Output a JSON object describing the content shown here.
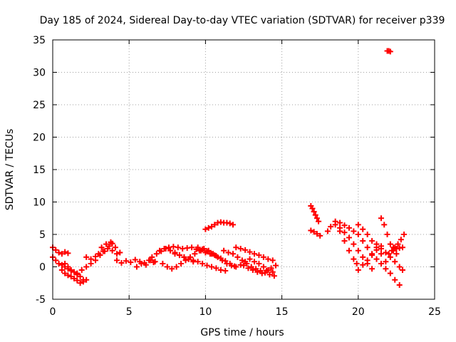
{
  "chart_data": {
    "type": "scatter",
    "title": "Day 185 of 2024, Sidereal Day-to-day VTEC variation (SDTVAR) for receiver p339",
    "xlabel": "GPS time / hours",
    "ylabel": "SDTVAR / TECUs",
    "xlim": [
      0,
      25
    ],
    "ylim": [
      -5,
      35
    ],
    "xticks": [
      0,
      5,
      10,
      15,
      20,
      25
    ],
    "yticks": [
      -5,
      0,
      5,
      10,
      15,
      20,
      25,
      30,
      35
    ],
    "grid": true,
    "marker": "+",
    "series_color": "#ff0000",
    "series": [
      {
        "name": "arc-00-01",
        "x": [
          0.0,
          0.2,
          0.4,
          0.6,
          0.8,
          1.0
        ],
        "y": [
          3.0,
          2.6,
          2.2,
          2.0,
          2.3,
          2.1
        ]
      },
      {
        "name": "arc-00-02",
        "x": [
          0.0,
          0.2,
          0.4,
          0.6,
          0.8,
          1.0,
          1.2
        ],
        "y": [
          1.5,
          1.0,
          0.5,
          0.3,
          0.0,
          -0.3,
          -0.6
        ]
      },
      {
        "name": "arc-00-03",
        "x": [
          0.6,
          0.8,
          1.0,
          1.2,
          1.4,
          1.6,
          1.8,
          2.0,
          2.2
        ],
        "y": [
          -0.5,
          -1.0,
          -1.3,
          -1.5,
          -1.8,
          -2.1,
          -2.5,
          -2.3,
          -2.0
        ]
      },
      {
        "name": "arc-01-04",
        "x": [
          1.6,
          1.9,
          2.2,
          2.5,
          2.8,
          3.1,
          3.4,
          3.7,
          3.9
        ],
        "y": [
          -1.0,
          -0.5,
          0.0,
          0.5,
          1.0,
          1.8,
          2.4,
          3.2,
          3.6
        ]
      },
      {
        "name": "arc-01-05",
        "x": [
          0.8,
          1.0,
          1.2,
          1.4,
          1.6,
          1.8,
          2.0
        ],
        "y": [
          0.5,
          0.0,
          -0.5,
          -0.8,
          -1.2,
          -1.5,
          -2.0
        ]
      },
      {
        "name": "arc-02-06",
        "x": [
          2.2,
          2.5,
          2.8,
          3.0,
          3.3,
          3.6,
          3.9,
          4.2
        ],
        "y": [
          1.5,
          1.2,
          1.6,
          2.0,
          2.4,
          2.8,
          2.5,
          2.0
        ]
      },
      {
        "name": "arc-04-07",
        "x": [
          4.2,
          4.5,
          4.8,
          5.1,
          5.4,
          5.7,
          6.0,
          6.3,
          6.6
        ],
        "y": [
          1.0,
          0.6,
          0.9,
          0.7,
          1.1,
          0.8,
          0.6,
          1.0,
          0.7
        ]
      },
      {
        "name": "arc-06-08",
        "x": [
          6.5,
          6.8,
          7.1,
          7.4,
          7.7,
          8.0,
          8.3,
          8.6,
          8.9,
          9.2
        ],
        "y": [
          1.5,
          2.0,
          2.4,
          2.8,
          2.5,
          2.2,
          1.8,
          1.5,
          1.2,
          0.8
        ]
      },
      {
        "name": "arc-07-09",
        "x": [
          7.0,
          7.3,
          7.6,
          7.9,
          8.2,
          8.5,
          8.8,
          9.1,
          9.4,
          9.7,
          10.0,
          10.3,
          10.6
        ],
        "y": [
          2.5,
          2.8,
          3.0,
          3.1,
          3.0,
          2.8,
          2.9,
          3.0,
          2.7,
          2.5,
          2.2,
          2.0,
          1.8
        ]
      },
      {
        "name": "arc-07-10",
        "x": [
          7.2,
          7.5,
          7.8,
          8.1,
          8.4,
          8.7,
          9.0,
          9.3,
          9.6,
          9.9,
          10.2
        ],
        "y": [
          0.5,
          0.0,
          -0.3,
          0.0,
          0.5,
          1.0,
          1.5,
          2.0,
          2.5,
          2.8,
          2.5
        ]
      },
      {
        "name": "arc-08-11",
        "x": [
          8.0,
          8.3,
          8.6,
          8.9,
          9.2,
          9.5,
          9.8,
          10.1,
          10.4,
          10.7,
          11.0,
          11.3
        ],
        "y": [
          2.0,
          1.8,
          1.5,
          1.2,
          1.0,
          0.8,
          0.5,
          0.2,
          0.0,
          -0.2,
          -0.5,
          -0.6
        ]
      },
      {
        "name": "arc-09-12",
        "x": [
          9.5,
          9.8,
          10.1,
          10.4,
          10.7,
          11.0,
          11.3,
          11.6,
          11.9
        ],
        "y": [
          3.0,
          2.7,
          2.4,
          2.0,
          1.7,
          1.3,
          0.9,
          0.5,
          0.1
        ]
      },
      {
        "name": "arc-10-13",
        "x": [
          10.0,
          10.2,
          10.4,
          10.6,
          10.8,
          11.0,
          11.2,
          11.4,
          11.6,
          11.8
        ],
        "y": [
          5.8,
          6.0,
          6.2,
          6.5,
          6.8,
          6.9,
          6.8,
          6.8,
          6.7,
          6.5
        ]
      },
      {
        "name": "arc-10-14",
        "x": [
          10.5,
          10.8,
          11.1,
          11.4,
          11.7,
          12.0,
          12.3,
          12.6,
          12.9,
          13.2,
          13.5,
          13.8,
          14.1,
          14.4
        ],
        "y": [
          2.0,
          1.5,
          1.0,
          0.5,
          0.2,
          0.0,
          0.3,
          0.8,
          1.2,
          0.8,
          0.5,
          0.0,
          -0.5,
          -0.8
        ]
      },
      {
        "name": "arc-11-15",
        "x": [
          11.2,
          11.5,
          11.8,
          12.1,
          12.4,
          12.7,
          13.0,
          13.3,
          13.6,
          13.9,
          14.2,
          14.5
        ],
        "y": [
          2.5,
          2.2,
          2.0,
          1.5,
          1.0,
          0.5,
          0.0,
          -0.3,
          -0.6,
          -0.9,
          -1.2,
          -1.4
        ]
      },
      {
        "name": "arc-12-16",
        "x": [
          12.0,
          12.3,
          12.6,
          12.9,
          13.2,
          13.5,
          13.8,
          14.1,
          14.4
        ],
        "y": [
          3.0,
          2.8,
          2.6,
          2.3,
          2.0,
          1.8,
          1.5,
          1.2,
          1.0
        ]
      },
      {
        "name": "arc-12-17",
        "x": [
          12.5,
          12.8,
          13.1,
          13.4,
          13.7,
          14.0,
          14.3,
          14.6
        ],
        "y": [
          0.2,
          -0.2,
          -0.5,
          -0.8,
          -1.0,
          -0.6,
          -0.2,
          0.2
        ]
      },
      {
        "name": "arc-17-18",
        "x": [
          16.9,
          17.0,
          17.1,
          17.2,
          17.3,
          17.4
        ],
        "y": [
          9.4,
          9.0,
          8.5,
          8.0,
          7.5,
          7.0
        ]
      },
      {
        "name": "arc-17-19",
        "x": [
          16.9,
          17.1,
          17.3,
          17.5
        ],
        "y": [
          5.6,
          5.4,
          5.1,
          4.8
        ]
      },
      {
        "name": "arc-18-20",
        "x": [
          18.0,
          18.2,
          18.5,
          18.8,
          19.1,
          19.4,
          19.7,
          20.0
        ],
        "y": [
          5.5,
          6.2,
          7.0,
          6.8,
          6.4,
          6.0,
          5.5,
          5.0
        ]
      },
      {
        "name": "arc-18-21",
        "x": [
          18.5,
          18.8,
          19.1,
          19.4,
          19.7,
          20.0,
          20.3,
          20.6,
          20.9
        ],
        "y": [
          6.5,
          6.0,
          5.3,
          4.5,
          3.5,
          2.5,
          1.5,
          0.5,
          -0.3
        ]
      },
      {
        "name": "arc-19-22",
        "x": [
          18.8,
          19.1,
          19.4,
          19.7,
          19.9
        ],
        "y": [
          5.5,
          4.0,
          2.5,
          1.2,
          0.5
        ]
      },
      {
        "name": "arc-20-23",
        "x": [
          20.0,
          20.3,
          20.6,
          20.9,
          21.2,
          21.5,
          21.8
        ],
        "y": [
          6.5,
          5.8,
          5.0,
          4.0,
          3.0,
          2.0,
          0.8
        ]
      },
      {
        "name": "arc-20-24",
        "x": [
          20.3,
          20.6,
          20.9,
          21.2,
          21.5,
          21.8,
          22.1,
          22.4,
          22.7
        ],
        "y": [
          4.0,
          3.0,
          2.0,
          1.2,
          0.5,
          -0.3,
          -1.0,
          -2.0,
          -2.8
        ]
      },
      {
        "name": "arc-20-25",
        "x": [
          20.0,
          20.3,
          20.6,
          20.9,
          21.2,
          21.5
        ],
        "y": [
          -0.5,
          0.3,
          1.0,
          1.8,
          2.6,
          3.2
        ]
      },
      {
        "name": "arc-21-26",
        "x": [
          21.2,
          21.5,
          21.8,
          22.1,
          22.4,
          22.7,
          22.9
        ],
        "y": [
          3.5,
          2.8,
          2.2,
          1.5,
          0.8,
          0.0,
          -0.5
        ]
      },
      {
        "name": "arc-21-27",
        "x": [
          21.5,
          21.7,
          21.9,
          22.1,
          22.3,
          22.5
        ],
        "y": [
          7.5,
          6.5,
          5.0,
          3.5,
          2.5,
          2.0
        ]
      },
      {
        "name": "arc-22-28",
        "x": [
          22.0,
          22.2,
          22.4,
          22.6,
          22.8,
          23.0
        ],
        "y": [
          2.0,
          2.5,
          3.0,
          3.5,
          4.2,
          5.0
        ]
      },
      {
        "name": "arc-22-29",
        "x": [
          22.3,
          22.5,
          22.7,
          22.9
        ],
        "y": [
          3.0,
          2.8,
          2.9,
          3.0
        ]
      },
      {
        "name": "outlier-30",
        "x": [
          21.9,
          22.0,
          22.1
        ],
        "y": [
          33.3,
          33.3,
          33.2
        ]
      },
      {
        "name": "arc-05-31",
        "x": [
          5.5,
          5.8,
          6.1,
          6.4,
          6.7
        ],
        "y": [
          0.0,
          0.5,
          0.3,
          1.0,
          0.8
        ]
      },
      {
        "name": "arc-03-32",
        "x": [
          3.2,
          3.5,
          3.8,
          4.1,
          4.4
        ],
        "y": [
          3.0,
          3.5,
          3.8,
          3.0,
          2.2
        ]
      }
    ]
  }
}
